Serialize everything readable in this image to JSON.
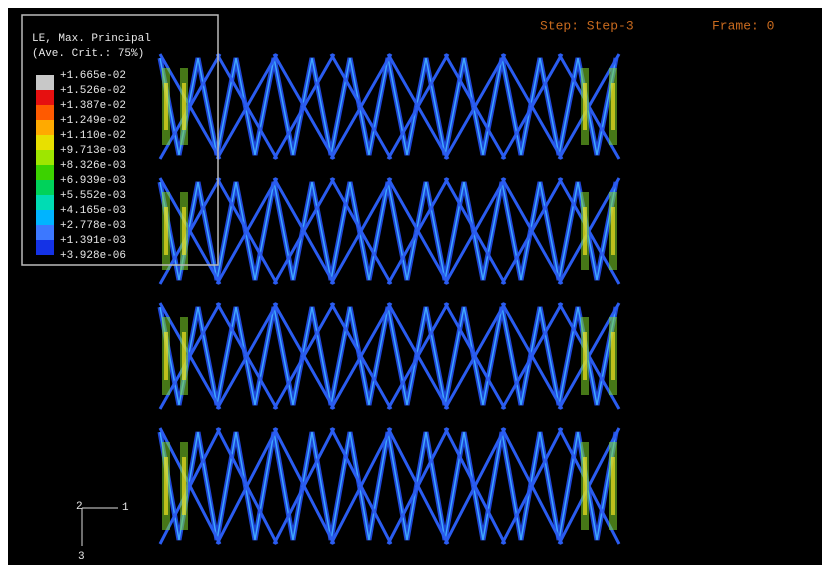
{
  "legend": {
    "title": "LE, Max. Principal",
    "subtitle": "(Ave. Crit.: 75%)",
    "labels": [
      "+1.665e-02",
      "+1.526e-02",
      "+1.387e-02",
      "+1.249e-02",
      "+1.110e-02",
      "+9.713e-03",
      "+8.326e-03",
      "+6.939e-03",
      "+5.552e-03",
      "+4.165e-03",
      "+2.778e-03",
      "+1.391e-03",
      "+3.928e-06"
    ]
  },
  "header": {
    "step": "Step: Step-3",
    "frame": "Frame: 0"
  },
  "triad": {
    "up": "2",
    "right": "1",
    "down": "3"
  }
}
